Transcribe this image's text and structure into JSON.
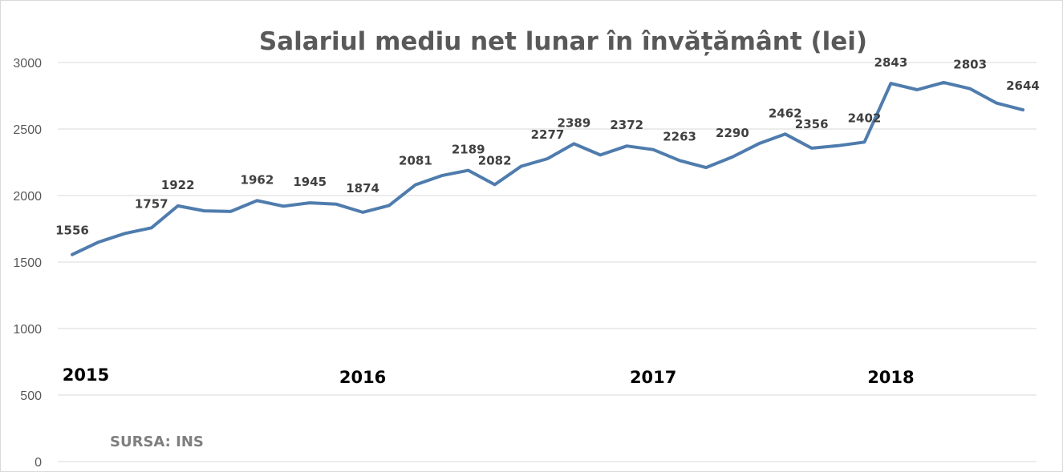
{
  "chart_data": {
    "type": "line",
    "title": "Salariul mediu net lunar în învățământ (lei)",
    "source_note": "SURSA: INS",
    "ylim": [
      0,
      3000
    ],
    "yticks": [
      "0",
      "500",
      "1000",
      "1500",
      "2000",
      "2500",
      "3000"
    ],
    "grid": true,
    "legend": "none",
    "year_labels": [
      {
        "label": "2015",
        "index": 0
      },
      {
        "label": "2016",
        "index": 11
      },
      {
        "label": "2017",
        "index": 22
      },
      {
        "label": "2018",
        "index": 31
      }
    ],
    "series": [
      {
        "color": "#4f7cad",
        "values": [
          1556,
          1650,
          1715,
          1757,
          1922,
          1885,
          1880,
          1962,
          1920,
          1945,
          1935,
          1874,
          1925,
          2081,
          2150,
          2189,
          2082,
          2220,
          2277,
          2389,
          2305,
          2372,
          2345,
          2263,
          2210,
          2290,
          2390,
          2462,
          2356,
          2375,
          2402,
          2843,
          2795,
          2850,
          2803,
          2695,
          2644
        ]
      }
    ],
    "data_labels": [
      {
        "index": 0,
        "text": "1556"
      },
      {
        "index": 3,
        "text": "1757"
      },
      {
        "index": 4,
        "text": "1922"
      },
      {
        "index": 7,
        "text": "1962"
      },
      {
        "index": 9,
        "text": "1945"
      },
      {
        "index": 11,
        "text": "1874"
      },
      {
        "index": 13,
        "text": "2081"
      },
      {
        "index": 15,
        "text": "2189"
      },
      {
        "index": 16,
        "text": "2082"
      },
      {
        "index": 18,
        "text": "2277"
      },
      {
        "index": 19,
        "text": "2389"
      },
      {
        "index": 21,
        "text": "2372"
      },
      {
        "index": 23,
        "text": "2263"
      },
      {
        "index": 25,
        "text": "2290"
      },
      {
        "index": 27,
        "text": "2462"
      },
      {
        "index": 28,
        "text": "2356"
      },
      {
        "index": 30,
        "text": "2402"
      },
      {
        "index": 31,
        "text": "2843"
      },
      {
        "index": 34,
        "text": "2803"
      },
      {
        "index": 36,
        "text": "2644"
      }
    ]
  }
}
